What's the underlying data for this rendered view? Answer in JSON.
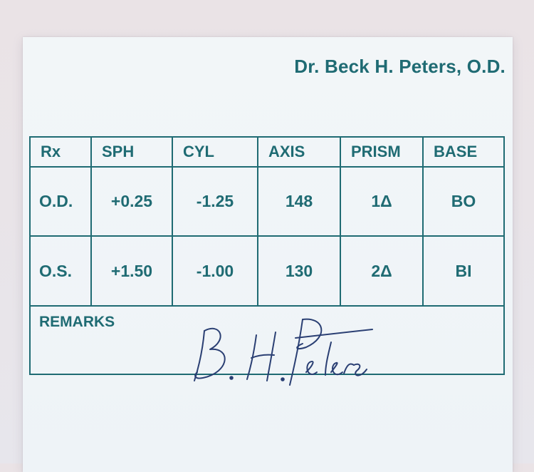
{
  "doctor_name": "Dr. Beck H. Peters, O.D.",
  "table": {
    "headers": [
      "Rx",
      "SPH",
      "CYL",
      "AXIS",
      "PRISM",
      "BASE"
    ],
    "rows": [
      {
        "eye": "O.D.",
        "sph": "+0.25",
        "cyl": "-1.25",
        "axis": "148",
        "prism": "1Δ",
        "base": "BO"
      },
      {
        "eye": "O.S.",
        "sph": "+1.50",
        "cyl": "-1.00",
        "axis": "130",
        "prism": "2Δ",
        "base": "BI"
      }
    ]
  },
  "remarks_label": "REMARKS",
  "signature_text": "B. H. Peters",
  "colors": {
    "ink": "#1f6b73",
    "signature": "#2a3f73"
  }
}
